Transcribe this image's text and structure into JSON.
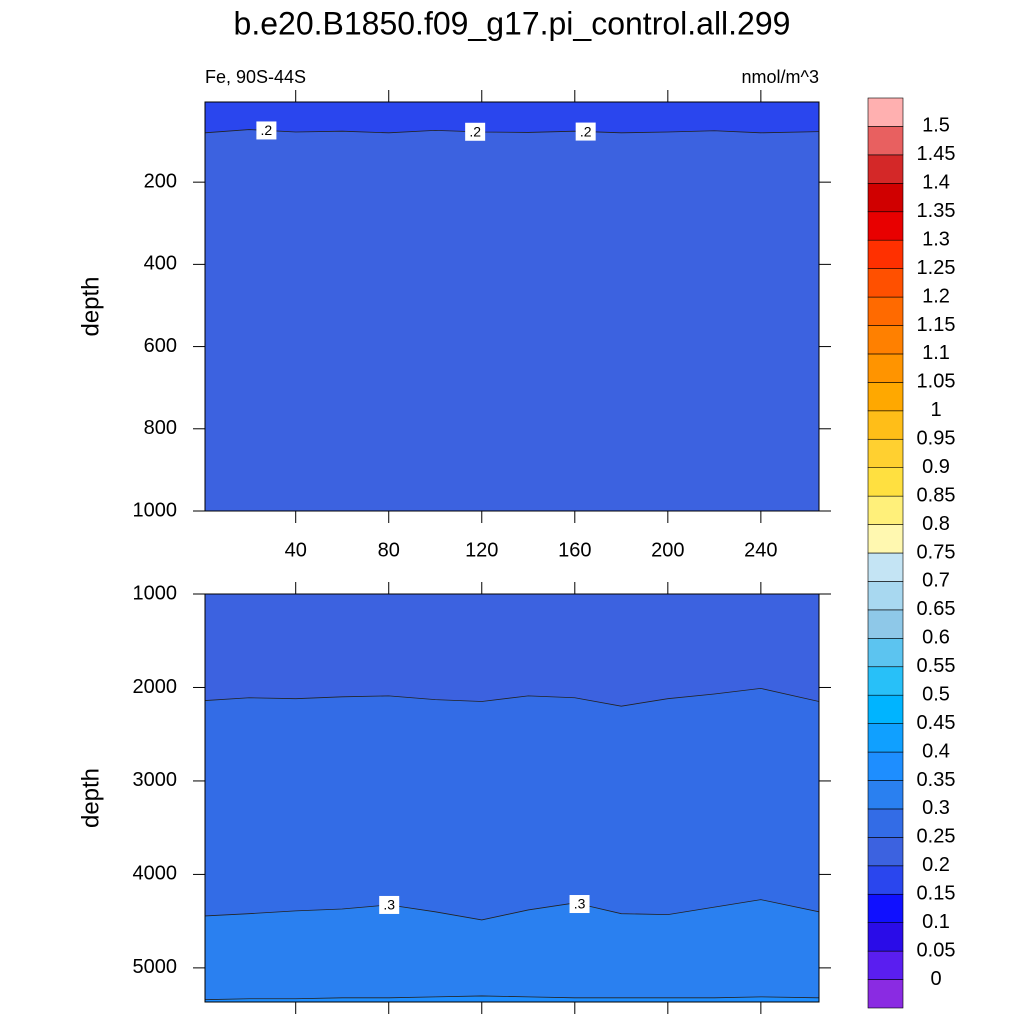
{
  "chart_data": {
    "type": "contour",
    "title": "b.e20.B1850.f09_g17.pi_control.all.299",
    "subtitle_left": "Fe, 90S-44S",
    "subtitle_right": "nmol/m^3",
    "panels": [
      {
        "ylabel": "depth",
        "xlim": [
          1,
          265
        ],
        "ylim": [
          5,
          1000
        ],
        "xticks": [
          40,
          80,
          120,
          160,
          200,
          240
        ],
        "yticks": [
          200,
          400,
          600,
          800,
          1000
        ],
        "x_tick_labels": true,
        "contours": [
          {
            "level": {
              "value": 0.2,
              "label": ".2"
            },
            "x": [
              1,
              20,
              40,
              60,
              80,
              100,
              120,
              140,
              160,
              180,
              200,
              220,
              240,
              265
            ],
            "depth": [
              80,
              72,
              78,
              76,
              80,
              74,
              78,
              79,
              76,
              80,
              78,
              75,
              80,
              77
            ]
          }
        ]
      },
      {
        "ylabel": "depth",
        "xlim": [
          1,
          265
        ],
        "ylim": [
          1000,
          5365
        ],
        "xticks": [
          40,
          80,
          120,
          160,
          200,
          240
        ],
        "yticks": [
          1000,
          2000,
          3000,
          4000,
          5000
        ],
        "x_tick_labels": false,
        "contours": [
          {
            "level": 0.25,
            "x": [
              1,
              20,
              40,
              60,
              80,
              100,
              120,
              140,
              160,
              180,
              200,
              220,
              240,
              265
            ],
            "depth": [
              2140,
              2110,
              2120,
              2100,
              2090,
              2130,
              2150,
              2090,
              2110,
              2200,
              2120,
              2070,
              2010,
              2150
            ]
          },
          {
            "level": {
              "value": 0.3,
              "label": ".3"
            },
            "x": [
              1,
              20,
              40,
              60,
              80,
              100,
              120,
              140,
              160,
              180,
              200,
              220,
              240,
              265
            ],
            "depth": [
              4444,
              4420,
              4390,
              4370,
              4326,
              4400,
              4487,
              4380,
              4305,
              4420,
              4430,
              4350,
              4270,
              4400
            ]
          },
          {
            "level": 0.35,
            "x": [
              1,
              20,
              40,
              60,
              80,
              100,
              120,
              140,
              160,
              180,
              200,
              220,
              240,
              265
            ],
            "depth": [
              5340,
              5330,
              5330,
              5320,
              5320,
              5310,
              5300,
              5310,
              5320,
              5320,
              5320,
              5320,
              5310,
              5320
            ]
          }
        ]
      }
    ],
    "colorbar": {
      "levels": [
        0,
        0.05,
        0.1,
        0.15,
        0.2,
        0.25,
        0.3,
        0.35,
        0.4,
        0.45,
        0.5,
        0.55,
        0.6,
        0.65,
        0.7,
        0.75,
        0.8,
        0.85,
        0.9,
        0.95,
        1,
        1.05,
        1.1,
        1.15,
        1.2,
        1.25,
        1.3,
        1.35,
        1.4,
        1.45,
        1.5
      ],
      "colors": [
        "#8a2be2",
        "#5a1ef0",
        "#2a0ce8",
        "#1010ff",
        "#2a46ee",
        "#3c62e0",
        "#336ce6",
        "#2a80f0",
        "#1e8eff",
        "#10a0ff",
        "#00b4ff",
        "#28c0f8",
        "#5cc4f0",
        "#8ec8e8",
        "#a8d8f0",
        "#c4e4f4",
        "#fff8b0",
        "#fff07a",
        "#ffe040",
        "#ffd030",
        "#ffbe18",
        "#ffa800",
        "#ff9400",
        "#ff8000",
        "#ff6a00",
        "#ff5000",
        "#ff3000",
        "#e80000",
        "#d00000",
        "#d42828",
        "#e86060",
        "#ffb0b0"
      ]
    }
  }
}
